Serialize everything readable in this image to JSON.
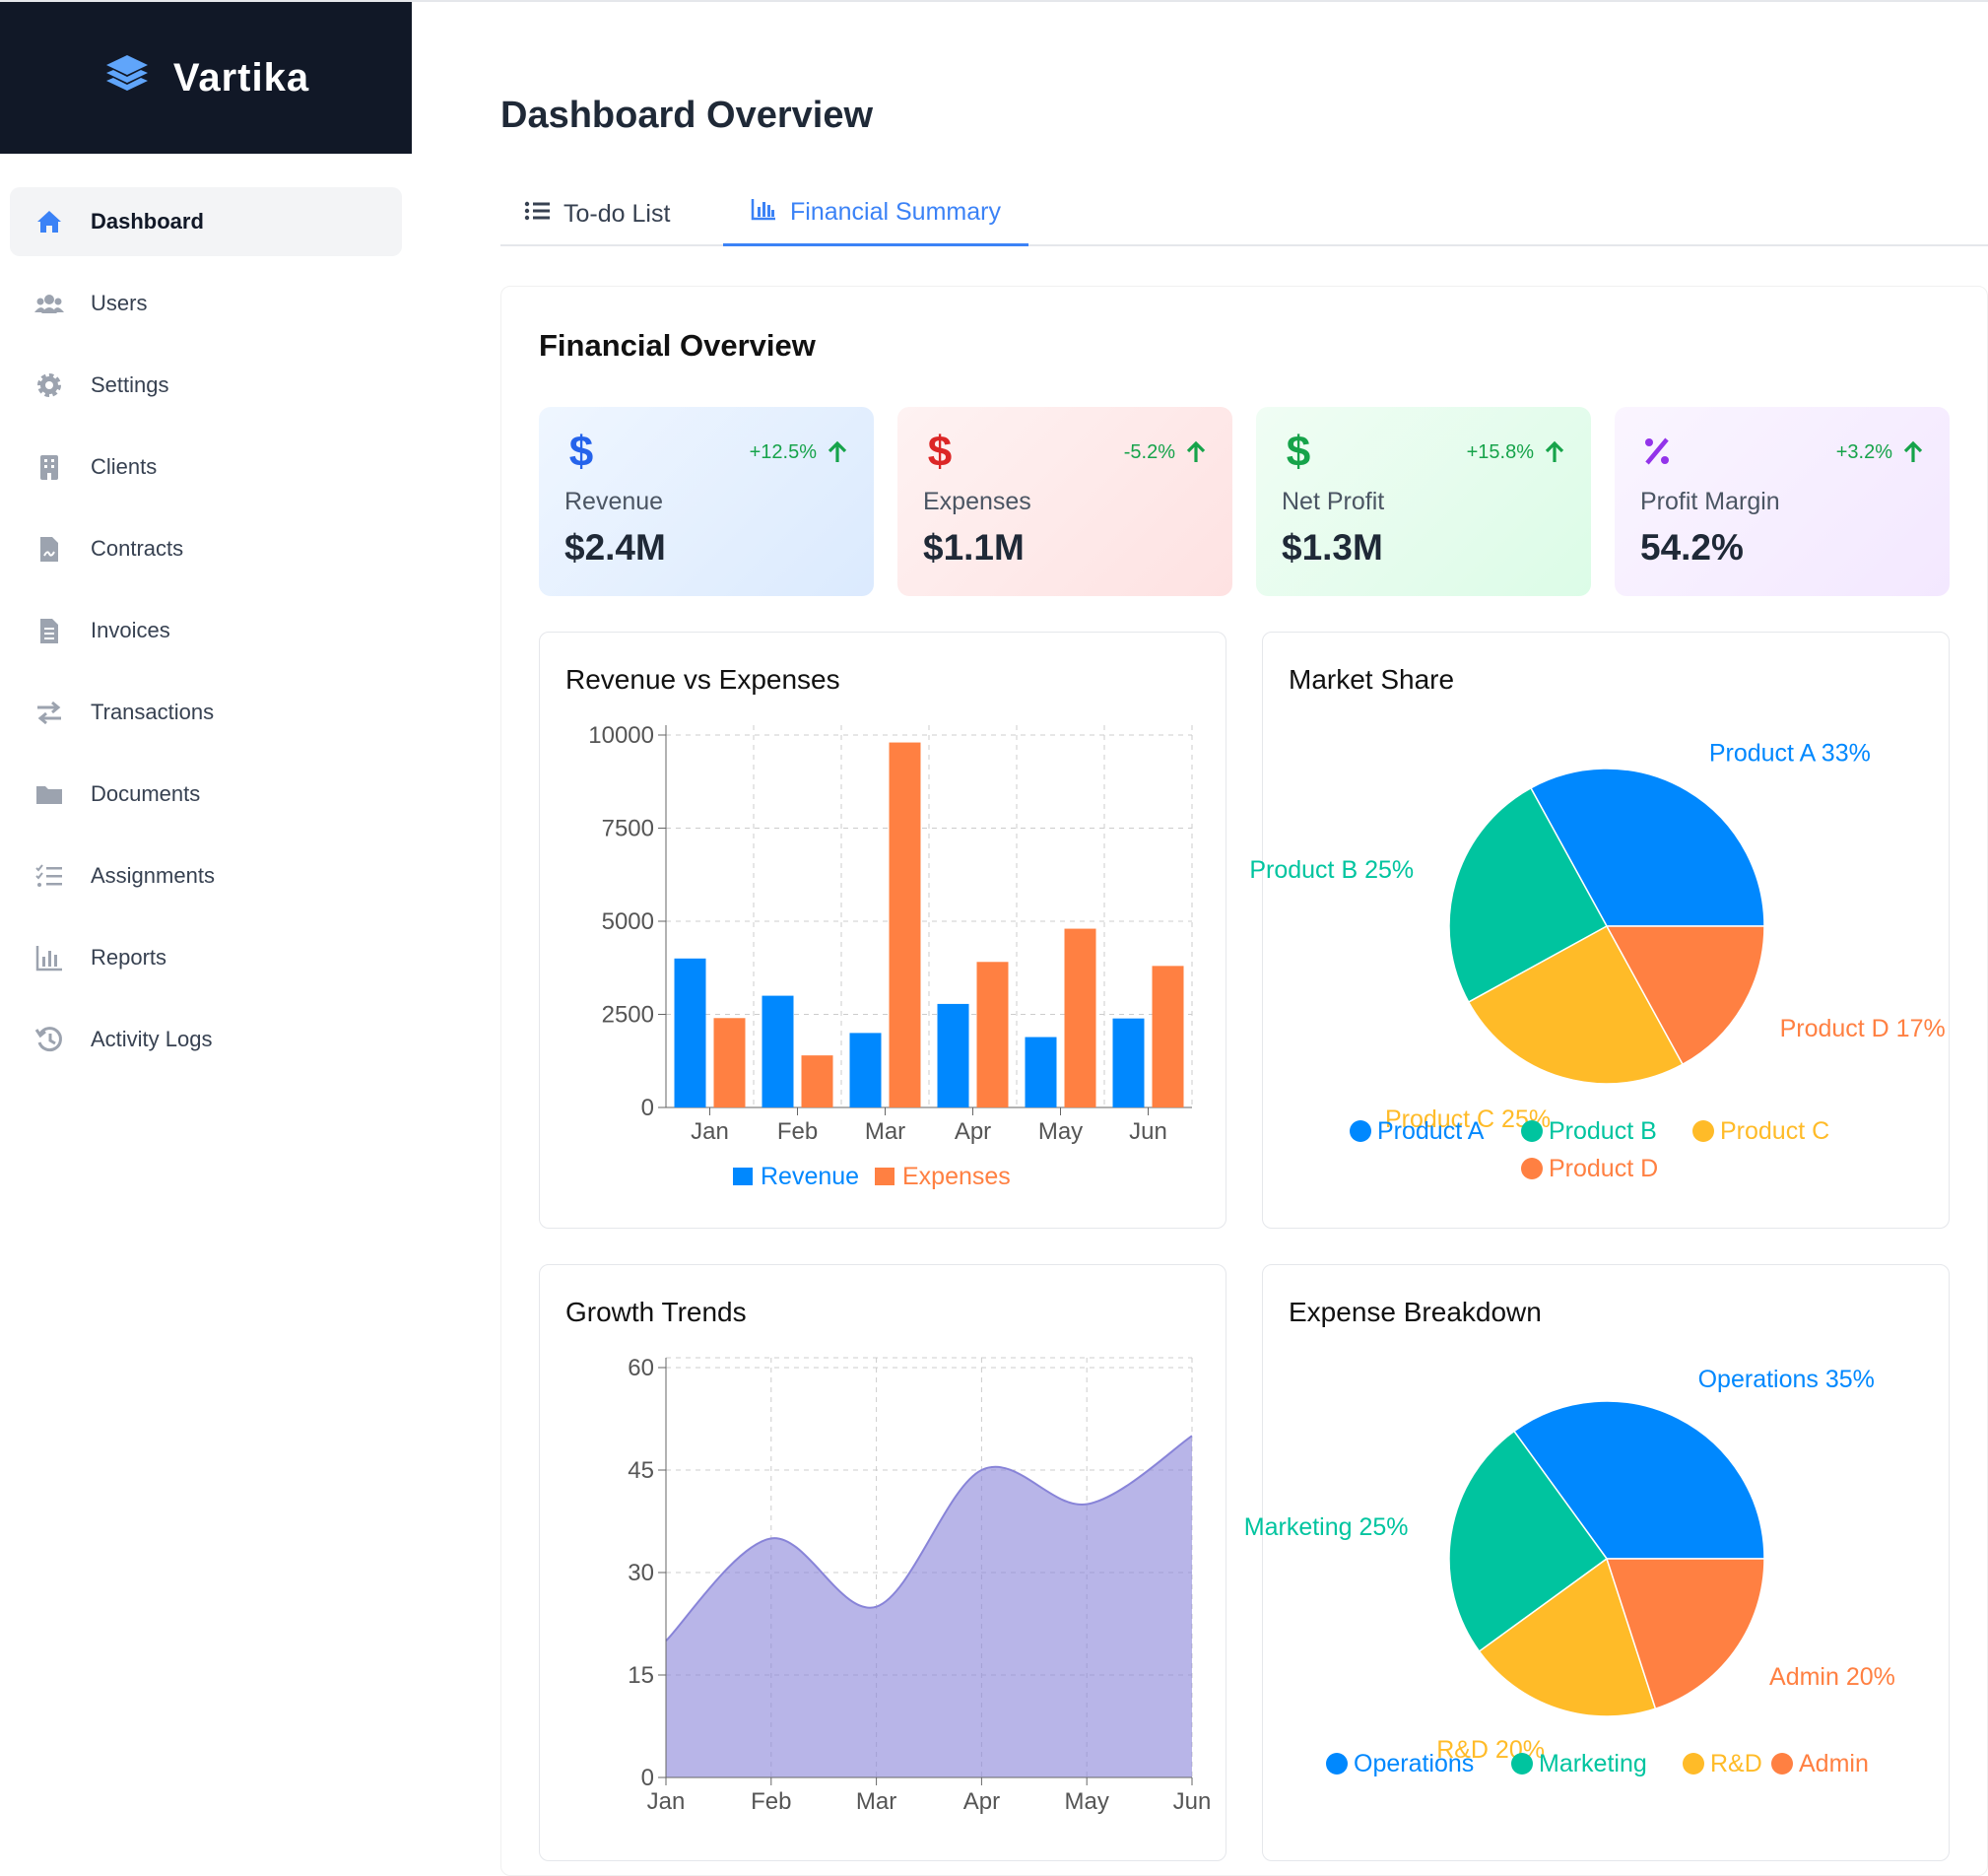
{
  "brand": {
    "name": "Vartika"
  },
  "sidebar": {
    "items": [
      {
        "label": "Dashboard",
        "icon": "home-icon"
      },
      {
        "label": "Users",
        "icon": "users-icon"
      },
      {
        "label": "Settings",
        "icon": "gear-icon"
      },
      {
        "label": "Clients",
        "icon": "building-icon"
      },
      {
        "label": "Contracts",
        "icon": "contract-icon"
      },
      {
        "label": "Invoices",
        "icon": "invoice-icon"
      },
      {
        "label": "Transactions",
        "icon": "exchange-icon"
      },
      {
        "label": "Documents",
        "icon": "folder-icon"
      },
      {
        "label": "Assignments",
        "icon": "checklist-icon"
      },
      {
        "label": "Reports",
        "icon": "bar-chart-icon"
      },
      {
        "label": "Activity Logs",
        "icon": "history-icon"
      }
    ]
  },
  "header": {
    "title": "Dashboard Overview"
  },
  "tabs": [
    {
      "label": "To-do List",
      "icon": "list-icon"
    },
    {
      "label": "Financial Summary",
      "icon": "bar-chart-icon"
    }
  ],
  "panel": {
    "title": "Financial Overview"
  },
  "stats": [
    {
      "label": "Revenue",
      "value": "$2.4M",
      "change": "+12.5%",
      "icon": "dollar-icon",
      "icon_color": "#2563eb",
      "bg": "#dbeafe"
    },
    {
      "label": "Expenses",
      "value": "$1.1M",
      "change": "-5.2%",
      "icon": "dollar-icon",
      "icon_color": "#dc2626",
      "bg": "#fee2e2"
    },
    {
      "label": "Net Profit",
      "value": "$1.3M",
      "change": "+15.8%",
      "icon": "dollar-icon",
      "icon_color": "#16a34a",
      "bg": "#dcfce7"
    },
    {
      "label": "Profit Margin",
      "value": "54.2%",
      "change": "+3.2%",
      "icon": "percent-icon",
      "icon_color": "#9333ea",
      "bg": "#f3e8ff"
    }
  ],
  "chart_titles": {
    "revenue_expenses": "Revenue vs Expenses",
    "market_share": "Market Share",
    "growth": "Growth Trends",
    "expense_breakdown": "Expense Breakdown"
  },
  "chart_data": [
    {
      "type": "bar",
      "title": "Revenue vs Expenses",
      "categories": [
        "Jan",
        "Feb",
        "Mar",
        "Apr",
        "May",
        "Jun"
      ],
      "series": [
        {
          "name": "Revenue",
          "color": "#0088fe",
          "values": [
            4000,
            3000,
            2000,
            2780,
            1890,
            2390
          ]
        },
        {
          "name": "Expenses",
          "color": "#ff8042",
          "values": [
            2400,
            1398,
            9800,
            3908,
            4800,
            3800
          ]
        }
      ],
      "yticks": [
        "0",
        "2500",
        "5000",
        "7500",
        "10000"
      ],
      "ylim": [
        0,
        10000
      ],
      "legend": "bottom"
    },
    {
      "type": "pie",
      "title": "Market Share",
      "slices": [
        {
          "name": "Product A",
          "value": 33,
          "label": "Product A 33%",
          "color": "#0088fe"
        },
        {
          "name": "Product B",
          "value": 25,
          "label": "Product B 25%",
          "color": "#00c49f"
        },
        {
          "name": "Product C",
          "value": 25,
          "label": "Product C 25%",
          "color": "#ffbb28"
        },
        {
          "name": "Product D",
          "value": 17,
          "label": "Product D 17%",
          "color": "#ff8042"
        }
      ],
      "legend": "bottom"
    },
    {
      "type": "area",
      "title": "Growth Trends",
      "categories": [
        "Jan",
        "Feb",
        "Mar",
        "Apr",
        "May",
        "Jun"
      ],
      "values": [
        20,
        35,
        25,
        45,
        40,
        50
      ],
      "yticks": [
        "0",
        "15",
        "30",
        "45",
        "60"
      ],
      "ylim": [
        0,
        60
      ],
      "color": "#8884d8"
    },
    {
      "type": "pie",
      "title": "Expense Breakdown",
      "slices": [
        {
          "name": "Operations",
          "value": 35,
          "label": "Operations 35%",
          "color": "#0088fe"
        },
        {
          "name": "Marketing",
          "value": 25,
          "label": "Marketing 25%",
          "color": "#00c49f"
        },
        {
          "name": "R&D",
          "value": 20,
          "label": "R&D 20%",
          "color": "#ffbb28"
        },
        {
          "name": "Admin",
          "value": 20,
          "label": "Admin 20%",
          "color": "#ff8042"
        }
      ],
      "legend": "bottom"
    }
  ]
}
